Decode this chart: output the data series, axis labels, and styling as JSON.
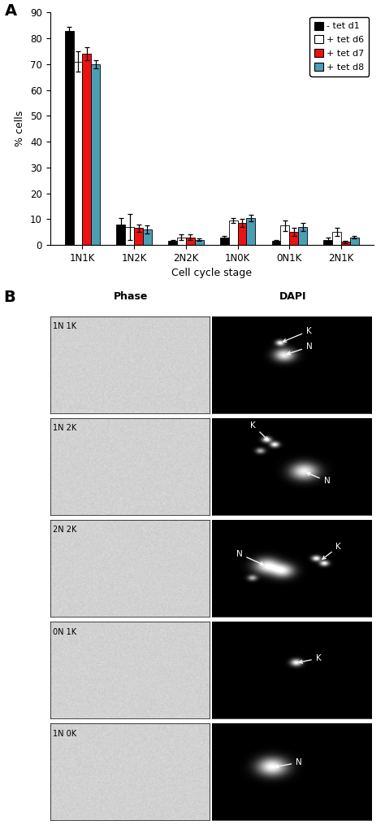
{
  "categories": [
    "1N1K",
    "1N2K",
    "2N2K",
    "1N0K",
    "0N1K",
    "2N1K"
  ],
  "series": [
    {
      "label": "- tet d1",
      "color": "#000000",
      "values": [
        83,
        8,
        1.5,
        3,
        1.5,
        2
      ],
      "errors": [
        1.5,
        2.5,
        0.5,
        0.5,
        0.5,
        0.8
      ]
    },
    {
      "label": "+ tet d6",
      "color": "#ffffff",
      "edgecolor": "#000000",
      "values": [
        71,
        7,
        3,
        9.5,
        7.5,
        5
      ],
      "errors": [
        4.0,
        5.0,
        1.2,
        1.0,
        2.0,
        1.5
      ]
    },
    {
      "label": "+ tet d7",
      "color": "#ee1111",
      "values": [
        74,
        6.5,
        3,
        8.5,
        5,
        1.2
      ],
      "errors": [
        2.5,
        1.5,
        1.2,
        1.5,
        1.5,
        0.5
      ]
    },
    {
      "label": "+ tet d8",
      "color": "#4a9fb5",
      "values": [
        70,
        6,
        2,
        10.5,
        7,
        3
      ],
      "errors": [
        1.5,
        1.5,
        0.5,
        1.2,
        1.5,
        0.5
      ]
    }
  ],
  "ylabel": "% cells",
  "xlabel": "Cell cycle stage",
  "ylim": [
    0,
    90
  ],
  "yticks": [
    0,
    10,
    20,
    30,
    40,
    50,
    60,
    70,
    80,
    90
  ],
  "panel_a_label": "A",
  "panel_b_label": "B",
  "phase_label": "Phase",
  "dapi_label": "DAPI",
  "microscopy_rows": [
    "1N 1K",
    "1N 2K",
    "2N 2K",
    "0N 1K",
    "1N 0K"
  ]
}
